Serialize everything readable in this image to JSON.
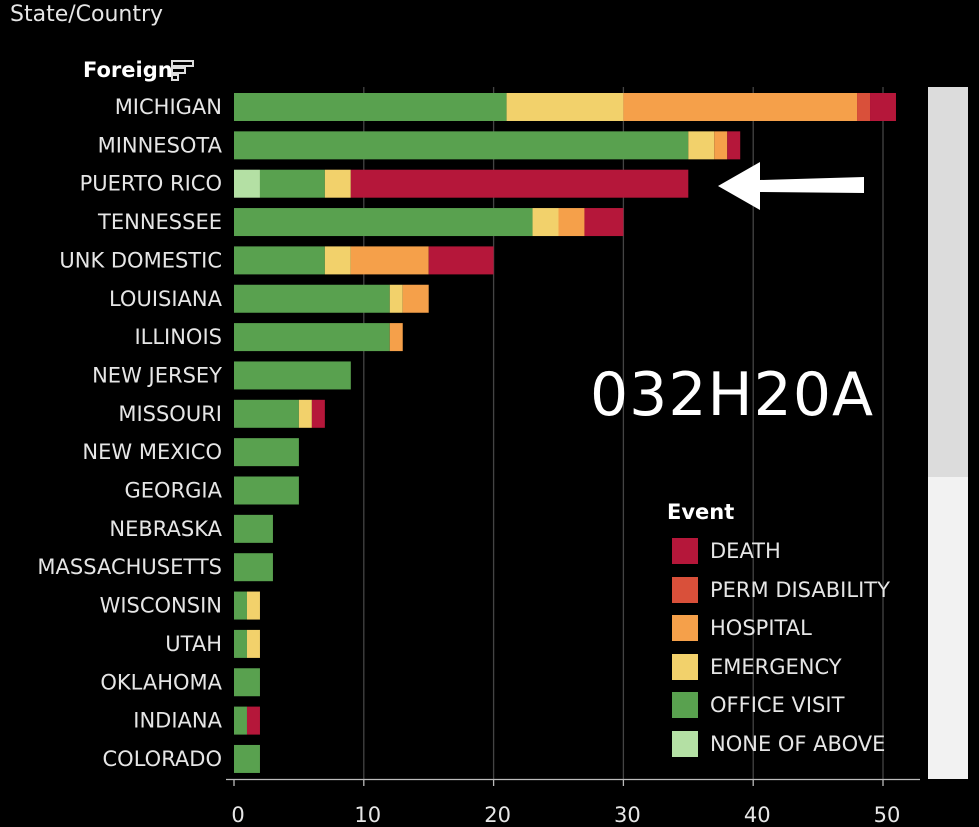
{
  "header": {
    "dimension_label": "State/Country",
    "filter_label": "Foreign"
  },
  "annotation": {
    "code_text": "032H20A"
  },
  "legend": {
    "title": "Event",
    "items": [
      {
        "label": "DEATH",
        "color": "#b5173a"
      },
      {
        "label": "PERM DISABILITY",
        "color": "#d9503a"
      },
      {
        "label": "HOSPITAL",
        "color": "#f5a04a"
      },
      {
        "label": "EMERGENCY",
        "color": "#f2d16b"
      },
      {
        "label": "OFFICE VISIT",
        "color": "#59a14f"
      },
      {
        "label": "NONE OF ABOVE",
        "color": "#b4e0a4"
      }
    ]
  },
  "chart_data": {
    "type": "bar",
    "orientation": "horizontal",
    "stacked": true,
    "categories": [
      "MICHIGAN",
      "MINNESOTA",
      "PUERTO RICO",
      "TENNESSEE",
      "UNK DOMESTIC",
      "LOUISIANA",
      "ILLINOIS",
      "NEW JERSEY",
      "MISSOURI",
      "NEW MEXICO",
      "GEORGIA",
      "NEBRASKA",
      "MASSACHUSETTS",
      "WISCONSIN",
      "UTAH",
      "OKLAHOMA",
      "INDIANA",
      "COLORADO"
    ],
    "series": [
      {
        "name": "NONE OF ABOVE",
        "color": "#b4e0a4",
        "values": [
          0,
          0,
          2,
          0,
          0,
          0,
          0,
          0,
          0,
          0,
          0,
          0,
          0,
          0,
          0,
          0,
          0,
          0
        ]
      },
      {
        "name": "OFFICE VISIT",
        "color": "#59a14f",
        "values": [
          21,
          35,
          5,
          23,
          7,
          12,
          12,
          9,
          5,
          5,
          5,
          3,
          3,
          1,
          1,
          2,
          1,
          2
        ]
      },
      {
        "name": "EMERGENCY",
        "color": "#f2d16b",
        "values": [
          9,
          2,
          2,
          2,
          2,
          1,
          0,
          0,
          1,
          0,
          0,
          0,
          0,
          1,
          1,
          0,
          0,
          0
        ]
      },
      {
        "name": "HOSPITAL",
        "color": "#f5a04a",
        "values": [
          18,
          1,
          0,
          2,
          6,
          2,
          1,
          0,
          0,
          0,
          0,
          0,
          0,
          0,
          0,
          0,
          0,
          0
        ]
      },
      {
        "name": "PERM DISABILITY",
        "color": "#d9503a",
        "values": [
          1,
          0,
          0,
          0,
          0,
          0,
          0,
          0,
          0,
          0,
          0,
          0,
          0,
          0,
          0,
          0,
          0,
          0
        ]
      },
      {
        "name": "DEATH",
        "color": "#b5173a",
        "values": [
          2,
          1,
          26,
          3,
          5,
          0,
          0,
          0,
          1,
          0,
          0,
          0,
          0,
          0,
          0,
          0,
          1,
          0
        ]
      }
    ],
    "xlim": [
      0,
      55
    ],
    "xticks": [
      0,
      10,
      20,
      30,
      40,
      50
    ],
    "grid": true,
    "legend_position": "right"
  }
}
